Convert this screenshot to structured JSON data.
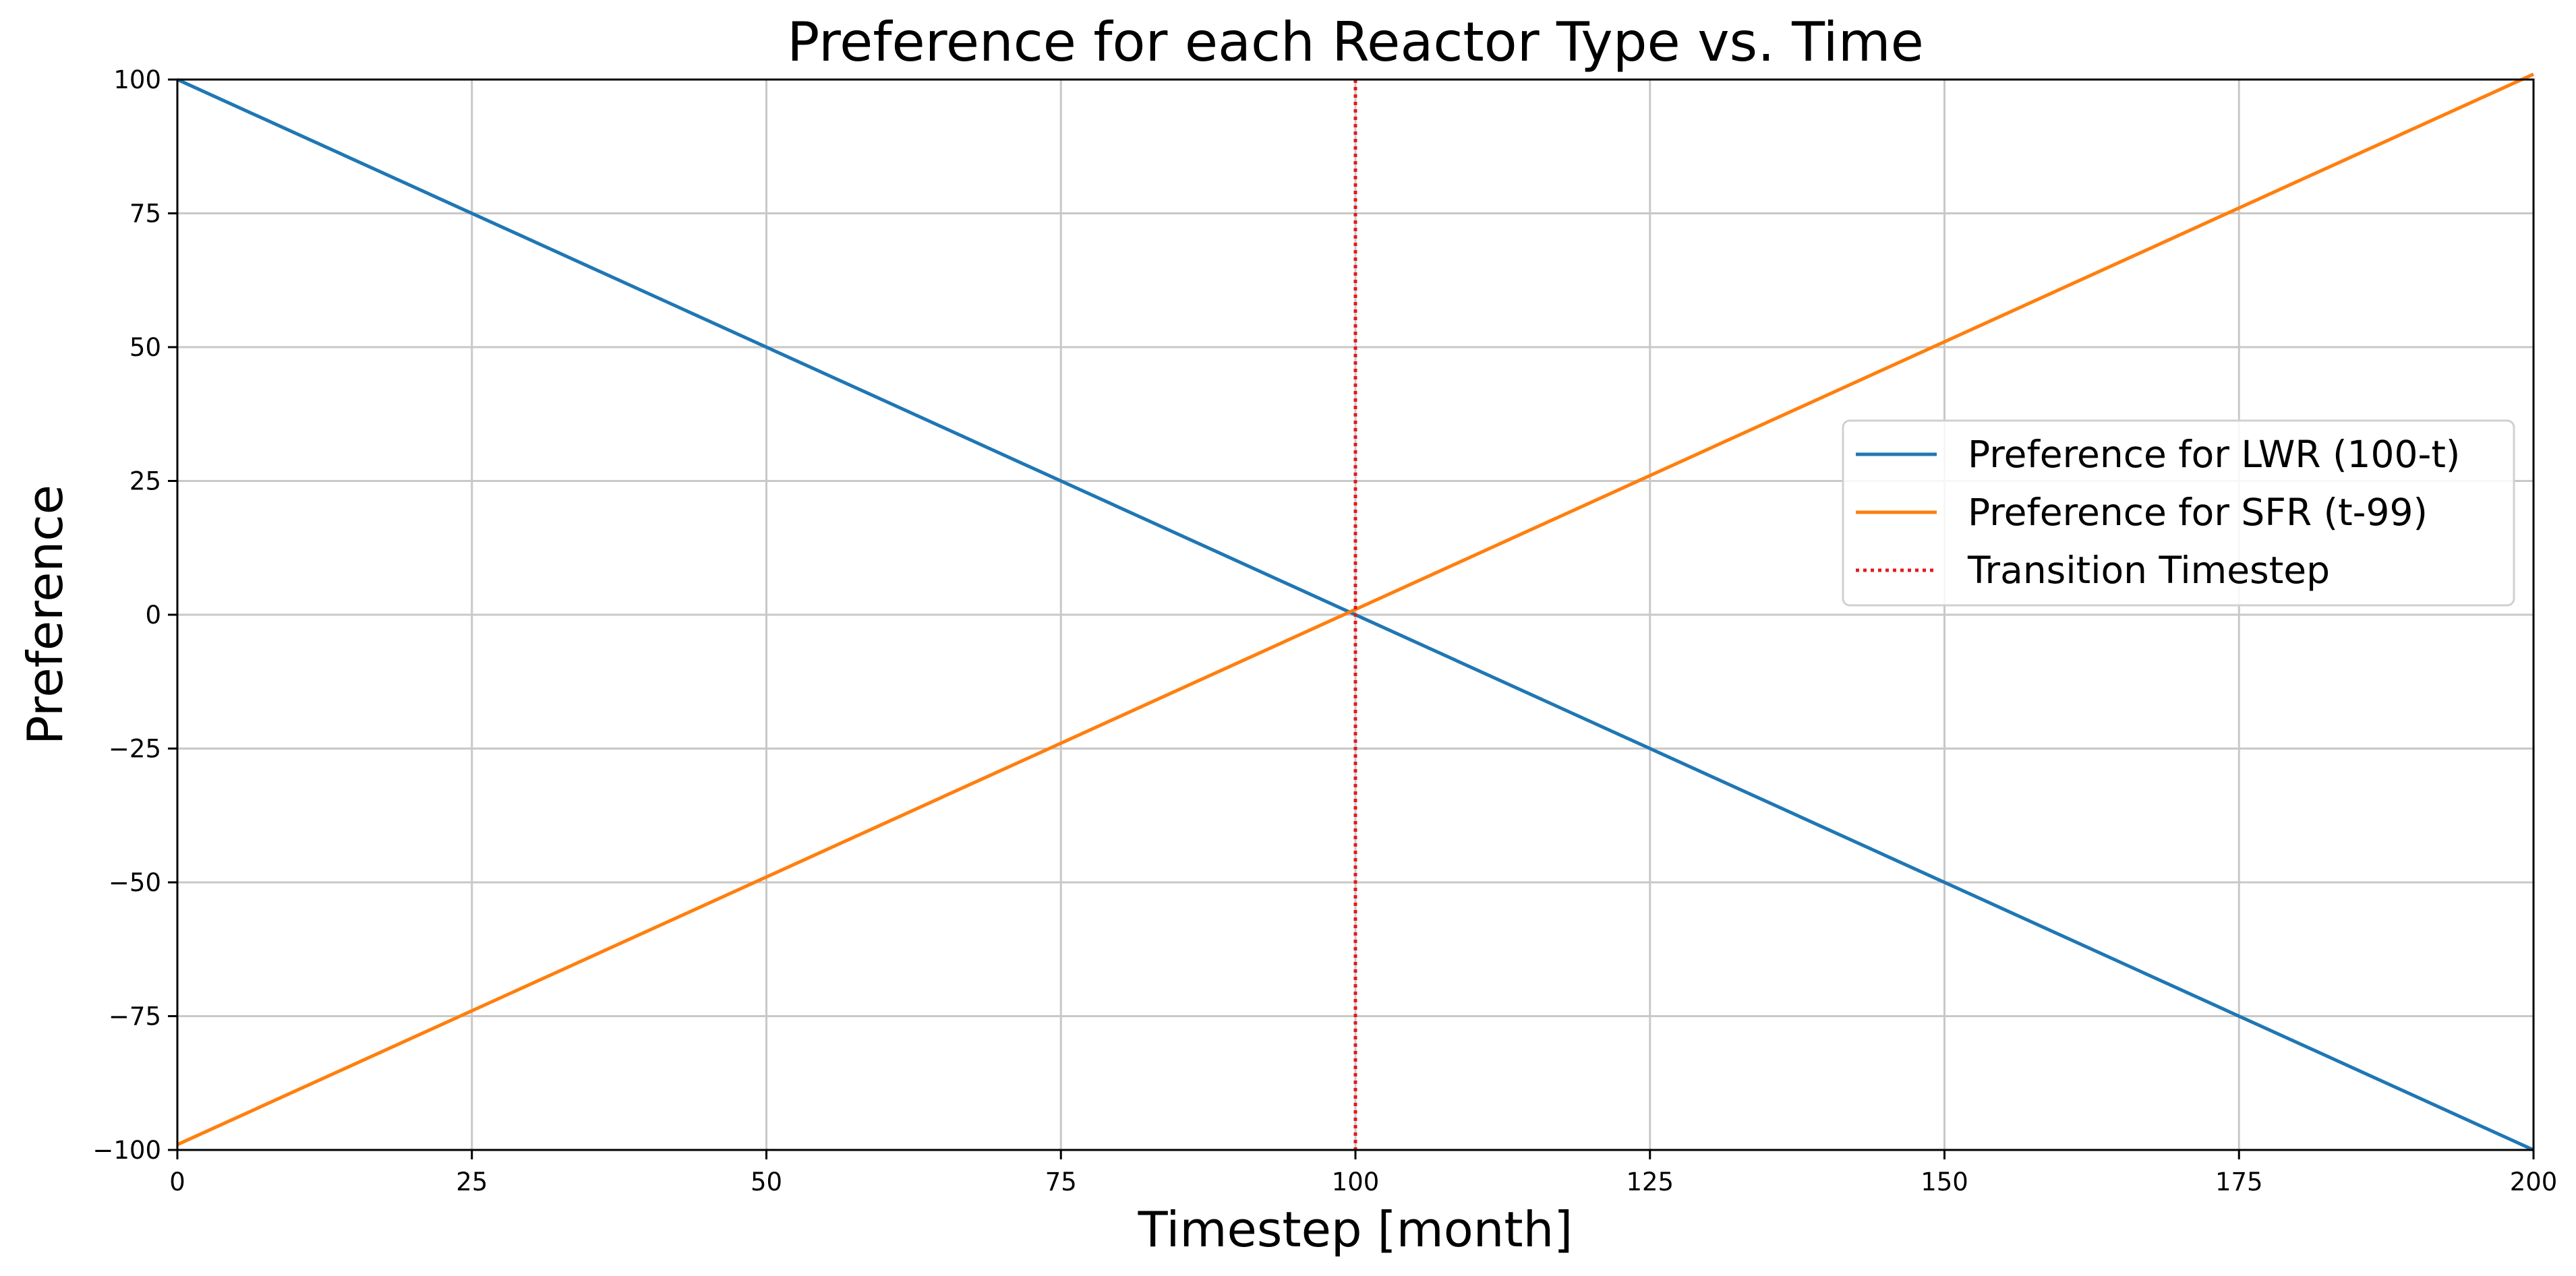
{
  "chart_data": {
    "type": "line",
    "title": "Preference for each Reactor Type vs. Time",
    "xlabel": "Timestep [month]",
    "ylabel": "Preference",
    "xlim": [
      0,
      200
    ],
    "ylim": [
      -100,
      100
    ],
    "xticks": [
      0,
      25,
      50,
      75,
      100,
      125,
      150,
      175,
      200
    ],
    "yticks": [
      -100,
      -75,
      -50,
      -25,
      0,
      25,
      50,
      75,
      100
    ],
    "xtick_labels": [
      "0",
      "25",
      "50",
      "75",
      "100",
      "125",
      "150",
      "175",
      "200"
    ],
    "ytick_labels": [
      "−100",
      "−75",
      "−50",
      "−25",
      "0",
      "25",
      "50",
      "75",
      "100"
    ],
    "grid": true,
    "legend_position": "right",
    "series": [
      {
        "name": "Preference for LWR (100-t)",
        "color": "#1f77b4",
        "style": "solid",
        "x": [
          0,
          200
        ],
        "y": [
          100,
          -100
        ]
      },
      {
        "name": "Preference for SFR (t-99)",
        "color": "#ff7f0e",
        "style": "solid",
        "x": [
          0,
          200
        ],
        "y": [
          -99,
          101
        ]
      }
    ],
    "vlines": [
      {
        "name": "Transition Timestep",
        "color": "#e41a1c",
        "style": "dotted",
        "x": 100
      }
    ]
  }
}
